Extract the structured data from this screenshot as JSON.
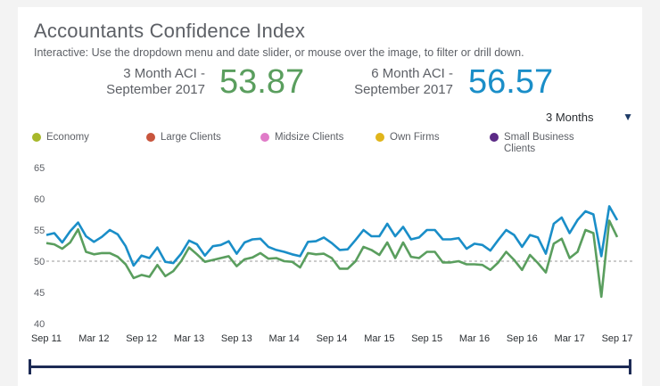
{
  "header": {
    "title": "Accountants Confidence Index",
    "subtitle": "Interactive: Use the dropdown menu and date slider, or mouse over the image, to filter or drill down."
  },
  "kpis": [
    {
      "label_line1": "3 Month ACI -",
      "label_line2": "September 2017",
      "value": "53.87",
      "color": "#5a9e5e"
    },
    {
      "label_line1": "6 Month ACI -",
      "label_line2": "September 2017",
      "value": "56.57",
      "color": "#1a8ec8"
    }
  ],
  "dropdown": {
    "selected": "3 Months",
    "arrow": "▼"
  },
  "legend": [
    {
      "label": "Economy",
      "color": "#a7b82a"
    },
    {
      "label": "Large Clients",
      "color": "#c8553d"
    },
    {
      "label": "Midsize Clients",
      "color": "#e07bc8"
    },
    {
      "label": "Own Firms",
      "color": "#e0b51b"
    },
    {
      "label": "Small Business",
      "label2": "Clients",
      "color": "#5b2a86"
    }
  ],
  "chart_data": {
    "type": "line",
    "title": "Accountants Confidence Index",
    "ylim": [
      40,
      65
    ],
    "yticks": [
      40,
      45,
      50,
      55,
      60,
      65
    ],
    "reference_line": 50,
    "xticks": [
      "Sep 11",
      "Mar 12",
      "Sep 12",
      "Mar 13",
      "Sep 13",
      "Mar 14",
      "Sep 14",
      "Mar 15",
      "Sep 15",
      "Mar 16",
      "Sep 16",
      "Mar 17",
      "Sep 17"
    ],
    "x_range_months": [
      0,
      72
    ],
    "series": [
      {
        "name": "6 Month ACI",
        "color": "#1a8ec8",
        "values": [
          54.2,
          54.5,
          53.0,
          54.8,
          56.2,
          54.0,
          53.1,
          53.9,
          55.0,
          54.3,
          52.4,
          49.3,
          50.9,
          50.5,
          52.2,
          49.9,
          49.7,
          51.2,
          53.3,
          52.7,
          50.9,
          52.4,
          52.6,
          53.2,
          51.2,
          53.0,
          53.5,
          53.6,
          52.3,
          51.8,
          51.5,
          51.1,
          50.8,
          53.1,
          53.2,
          53.8,
          52.9,
          51.8,
          51.9,
          53.4,
          55.0,
          54.0,
          54.0,
          56.0,
          54.0,
          55.5,
          53.5,
          53.8,
          55.0,
          55.0,
          53.5,
          53.5,
          53.7,
          52.0,
          52.8,
          52.6,
          51.7,
          53.4,
          55.0,
          54.2,
          52.3,
          54.2,
          53.8,
          51.2,
          56.0,
          57.0,
          54.5,
          56.6,
          58.0,
          57.5,
          50.8,
          58.8,
          56.57
        ]
      },
      {
        "name": "3 Month ACI",
        "color": "#5a9e5e",
        "values": [
          52.9,
          52.7,
          52.0,
          53.0,
          55.1,
          51.5,
          51.1,
          51.3,
          51.3,
          50.7,
          49.5,
          47.3,
          47.8,
          47.5,
          49.4,
          47.6,
          48.4,
          50.0,
          52.2,
          51.1,
          49.9,
          50.2,
          50.5,
          50.8,
          49.2,
          50.3,
          50.6,
          51.3,
          50.4,
          50.5,
          50.0,
          49.9,
          49.0,
          51.3,
          51.1,
          51.2,
          50.5,
          48.8,
          48.8,
          50.0,
          52.3,
          51.8,
          51.0,
          53.0,
          50.5,
          53.0,
          50.7,
          50.5,
          51.5,
          51.5,
          49.8,
          49.8,
          50.0,
          49.5,
          49.5,
          49.4,
          48.6,
          49.8,
          51.5,
          50.2,
          48.6,
          51.0,
          49.7,
          48.2,
          52.8,
          53.6,
          50.5,
          51.5,
          55.0,
          54.5,
          44.3,
          56.5,
          53.87
        ]
      }
    ]
  }
}
